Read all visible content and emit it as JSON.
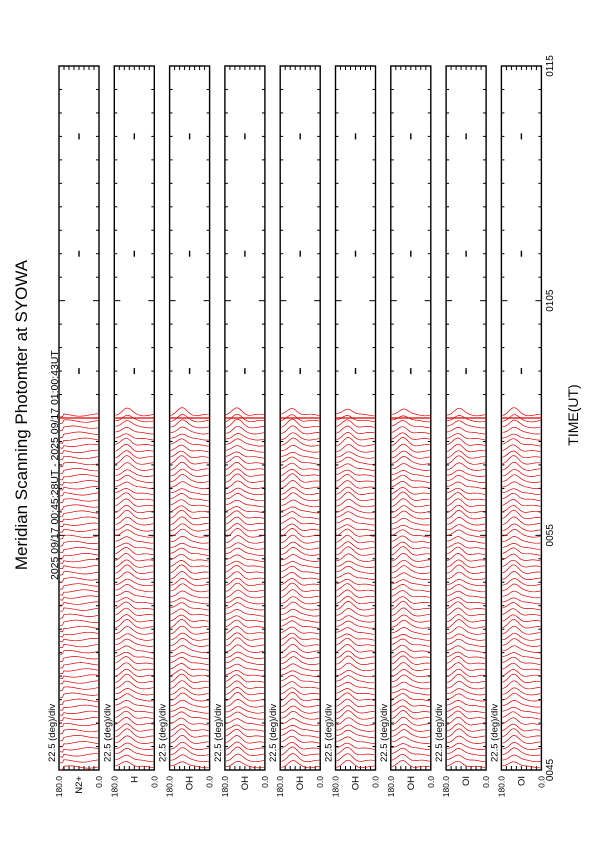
{
  "title": "Meridian Scanning Photomter at SYOWA",
  "time_range": "2025 09/17 00:45:28UT - 2025 09/17 01:00:43UT",
  "colors": {
    "trace": "#e00000",
    "axis": "#000000",
    "background": "#ffffff"
  },
  "chart_data": {
    "type": "line",
    "orientation": "rotated-90",
    "xlabel": "TIME(UT)",
    "x_ticks": [
      "0045",
      "0055",
      "0105",
      "0115"
    ],
    "x_range": [
      "0045",
      "0115"
    ],
    "data_end": "0100",
    "scale_label": "22.5 (deg)/div",
    "y_ticks": [
      "180.0",
      "0.0"
    ],
    "grid": false,
    "panels": [
      {
        "id": 1,
        "channel": "N2+"
      },
      {
        "id": 2,
        "channel": "H"
      },
      {
        "id": 3,
        "channel": "OH"
      },
      {
        "id": 4,
        "channel": "OH"
      },
      {
        "id": 5,
        "channel": "OH"
      },
      {
        "id": 6,
        "channel": "OH"
      },
      {
        "id": 7,
        "channel": "OH"
      },
      {
        "id": 8,
        "channel": "OI"
      },
      {
        "id": 9,
        "channel": "OI"
      }
    ]
  }
}
